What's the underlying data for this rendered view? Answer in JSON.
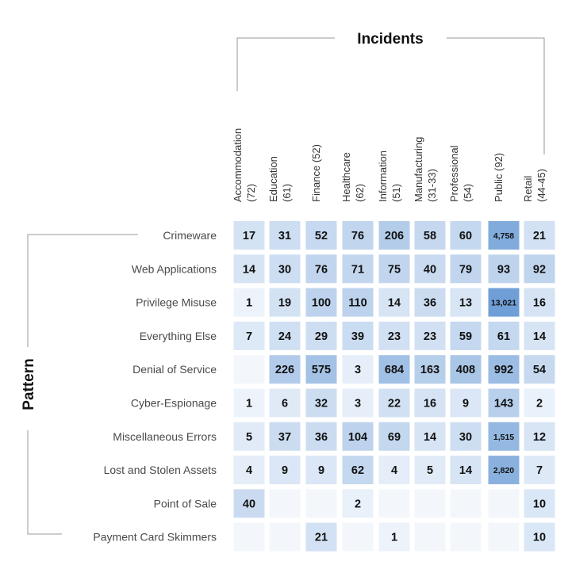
{
  "chart_data": {
    "type": "heatmap",
    "col_title": "Incidents",
    "row_title": "Pattern",
    "columns": [
      [
        "Accommodation",
        "(72)"
      ],
      [
        "Education",
        "(61)"
      ],
      [
        "Finance (52)"
      ],
      [
        "Healthcare",
        "(62)"
      ],
      [
        "Information",
        "(51)"
      ],
      [
        "Manufacturing",
        "(31-33)"
      ],
      [
        "Professional",
        "(54)"
      ],
      [
        "Public (92)"
      ],
      [
        "Retail",
        "(44-45)"
      ]
    ],
    "rows": [
      "Crimeware",
      "Web Applications",
      "Privilege Misuse",
      "Everything Else",
      "Denial of Service",
      "Cyber-Espionage",
      "Miscellaneous Errors",
      "Lost and Stolen Assets",
      "Point of Sale",
      "Payment Card Skimmers"
    ],
    "values": [
      [
        17,
        31,
        52,
        76,
        206,
        58,
        60,
        4758,
        21
      ],
      [
        14,
        30,
        76,
        71,
        75,
        40,
        79,
        93,
        92
      ],
      [
        1,
        19,
        100,
        110,
        14,
        36,
        13,
        13021,
        16
      ],
      [
        7,
        24,
        29,
        39,
        23,
        23,
        59,
        61,
        14
      ],
      [
        null,
        226,
        575,
        3,
        684,
        163,
        408,
        992,
        54
      ],
      [
        1,
        6,
        32,
        3,
        22,
        16,
        9,
        143,
        2
      ],
      [
        5,
        37,
        36,
        104,
        69,
        14,
        30,
        1515,
        12
      ],
      [
        4,
        9,
        9,
        62,
        4,
        5,
        14,
        2820,
        7
      ],
      [
        40,
        null,
        null,
        2,
        null,
        null,
        null,
        null,
        10
      ],
      [
        null,
        null,
        21,
        null,
        1,
        null,
        null,
        null,
        10
      ]
    ],
    "colors": {
      "empty": "#f3f7fc",
      "low": "#edf3fb",
      "high": "#6f9fd6"
    }
  }
}
